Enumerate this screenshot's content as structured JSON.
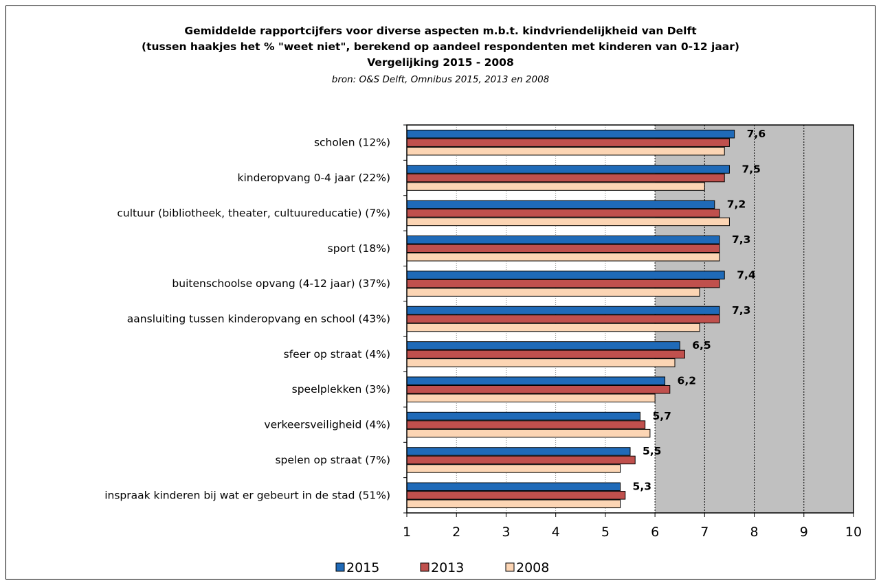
{
  "chart_data": {
    "type": "bar",
    "orientation": "horizontal",
    "title": [
      "Gemiddelde rapportcijfers voor diverse aspecten m.b.t. kindvriendelijkheid van Delft",
      "(tussen haakjes het % \"weet niet\", berekend op aandeel respondenten met kinderen van 0-12 jaar)",
      "Vergelijking 2015 - 2008"
    ],
    "subtitle": "bron: O&S Delft, Omnibus 2015, 2013 en 2008",
    "categories": [
      "scholen (12%)",
      "kinderopvang 0-4 jaar (22%)",
      "cultuur (bibliotheek, theater, cultuureducatie) (7%)",
      "sport (18%)",
      "buitenschoolse opvang (4-12 jaar) (37%)",
      "aansluiting tussen kinderopvang en school (43%)",
      "sfeer op straat (4%)",
      "speelplekken (3%)",
      "verkeersveiligheid (4%)",
      "spelen op straat (7%)",
      "inspraak kinderen bij wat er gebeurt in de stad (51%)"
    ],
    "series": [
      {
        "name": "2015",
        "color": "#1f6ab8",
        "values": [
          7.6,
          7.5,
          7.2,
          7.3,
          7.4,
          7.3,
          6.5,
          6.2,
          5.7,
          5.5,
          5.3
        ]
      },
      {
        "name": "2013",
        "color": "#c0504d",
        "values": [
          7.5,
          7.4,
          7.3,
          7.3,
          7.3,
          7.3,
          6.6,
          6.3,
          5.8,
          5.6,
          5.4
        ]
      },
      {
        "name": "2008",
        "color": "#fcd5b4",
        "values": [
          7.4,
          7.0,
          7.5,
          7.3,
          6.9,
          6.9,
          6.4,
          6.0,
          5.9,
          5.3,
          5.3
        ]
      }
    ],
    "data_labels": [
      "7,6",
      "7,5",
      "7,2",
      "7,3",
      "7,4",
      "7,3",
      "6,5",
      "6,2",
      "5,7",
      "5,5",
      "5,3"
    ],
    "xlim": [
      1,
      10
    ],
    "xticks": [
      "1",
      "2",
      "3",
      "4",
      "5",
      "6",
      "7",
      "8",
      "9",
      "10"
    ],
    "grid": true,
    "shaded_region_from": 6,
    "legend": {
      "position": "bottom",
      "entries": [
        "2015",
        "2013",
        "2008"
      ]
    },
    "colors": {
      "plot_background": "#ffffff",
      "shaded_background": "#c0c0c0"
    }
  }
}
